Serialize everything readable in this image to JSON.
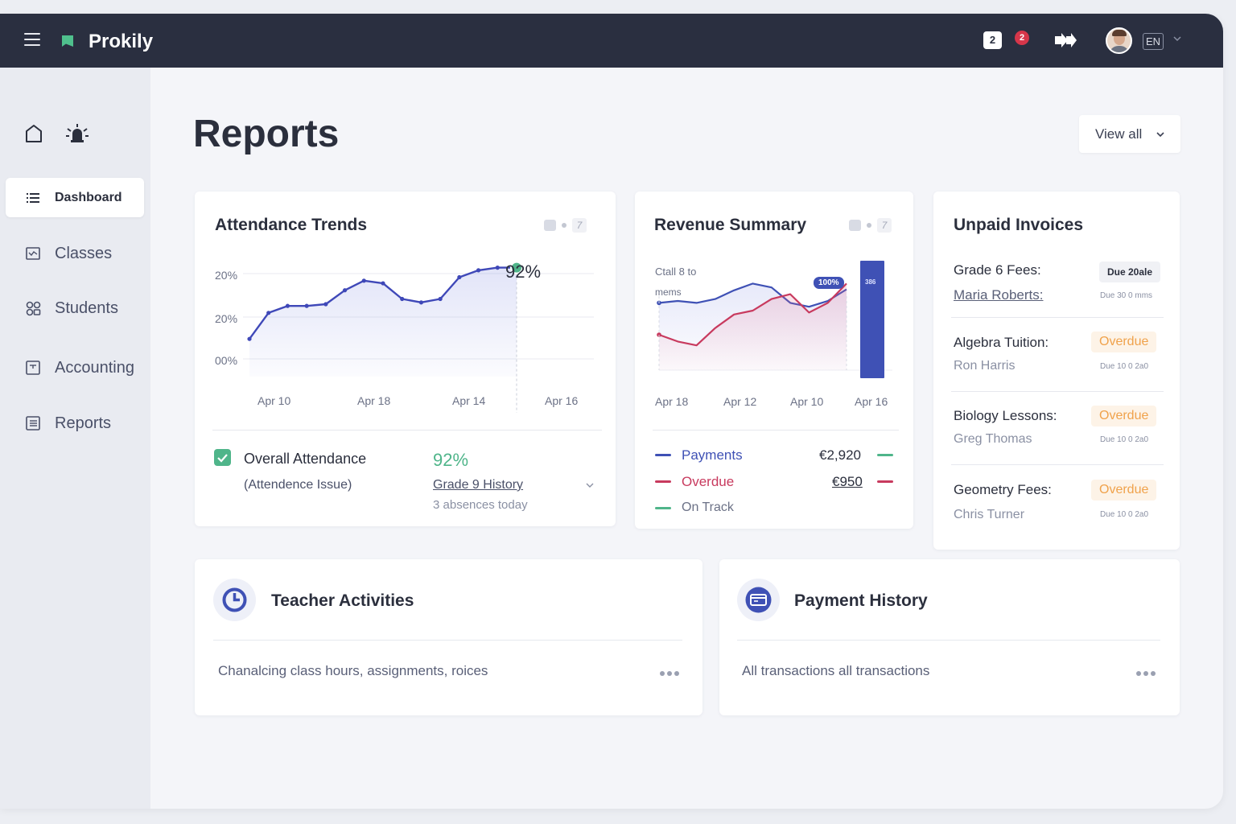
{
  "app": {
    "brand": "Prokily",
    "messages_count": "2",
    "notifications_count": "2",
    "language": "EN"
  },
  "sidebar": {
    "items": [
      {
        "label": "Dashboard",
        "icon": "list-icon",
        "active": true
      },
      {
        "label": "Classes",
        "icon": "calendar-icon"
      },
      {
        "label": "Students",
        "icon": "students-icon"
      },
      {
        "label": "Accounting",
        "icon": "ledger-icon"
      },
      {
        "label": "Reports",
        "icon": "report-icon"
      }
    ]
  },
  "page": {
    "title": "Reports",
    "view_all": "View all"
  },
  "attendance": {
    "title": "Attendance Trends",
    "tool_label": "7",
    "peak_label": "92%",
    "summary_label": "Overall Attendance",
    "summary_sub": "(Attendence Issue)",
    "summary_value": "92%",
    "summary_link": "Grade 9 History",
    "summary_note": "3 absences today"
  },
  "revenue": {
    "title": "Revenue Summary",
    "tool_label": "7",
    "note_line1": "Ctall 8 to",
    "note_line2": "mems",
    "badge": "100%",
    "bar_label": "386",
    "legend": [
      {
        "label": "Payments",
        "value": "€2,920",
        "color": "#3f51b5"
      },
      {
        "label": "Overdue",
        "value": "€950",
        "color": "#c83a5e"
      },
      {
        "label": "On Track",
        "value": "",
        "color": "#4fb58a"
      }
    ]
  },
  "invoices": {
    "title": "Unpaid Invoices",
    "items": [
      {
        "title": "Grade 6 Fees:",
        "name": "Maria Roberts:",
        "status": "Due 20ale",
        "due": "Due 30 0 mms",
        "type": "due"
      },
      {
        "title": "Algebra Tuition:",
        "name": "Ron Harris",
        "status": "Overdue",
        "due": "Due 10 0 2a0",
        "type": "overdue"
      },
      {
        "title": "Biology Lessons:",
        "name": "Greg Thomas",
        "status": "Overdue",
        "due": "Due 10 0 2a0",
        "type": "overdue"
      },
      {
        "title": "Geometry Fees:",
        "name": "Chris Turner",
        "status": "Overdue",
        "due": "Due 10 0 2a0",
        "type": "overdue"
      }
    ]
  },
  "teacher": {
    "title": "Teacher Activities",
    "desc": "Chanalcing class hours, assignments, roices"
  },
  "payments": {
    "title": "Payment History",
    "desc": "All transactions  all transactions"
  },
  "chart_data": [
    {
      "type": "line",
      "title": "Attendance Trends",
      "x_ticks": [
        "Apr 10",
        "Apr 18",
        "Apr 14",
        "Apr 16"
      ],
      "y_ticks": [
        "20%",
        "20%",
        "00%"
      ],
      "ylim": [
        0,
        100
      ],
      "series": [
        {
          "name": "Attendance",
          "values": [
            10,
            40,
            48,
            48,
            50,
            66,
            77,
            74,
            56,
            52,
            56,
            81,
            89,
            92,
            92
          ]
        }
      ],
      "highlight_index": 14,
      "highlight_label": "92%",
      "colors": {
        "line": "#3f48b8",
        "marker": "#4fb58a"
      }
    },
    {
      "type": "line",
      "title": "Revenue Summary",
      "x_ticks": [
        "Apr 18",
        "Apr 12",
        "Apr 10",
        "Apr 16"
      ],
      "ylim": [
        0,
        100
      ],
      "series": [
        {
          "name": "Payments",
          "values": [
            58,
            60,
            58,
            62,
            71,
            78,
            74,
            58,
            54,
            60,
            72
          ],
          "color": "#3f51b5"
        },
        {
          "name": "Overdue",
          "values": [
            25,
            18,
            14,
            32,
            46,
            50,
            62,
            67,
            48,
            58,
            78
          ],
          "color": "#c83a5e"
        }
      ],
      "bar": {
        "value": 100,
        "label": "386",
        "color": "#3f51b5"
      },
      "badge_label": "100%"
    }
  ]
}
